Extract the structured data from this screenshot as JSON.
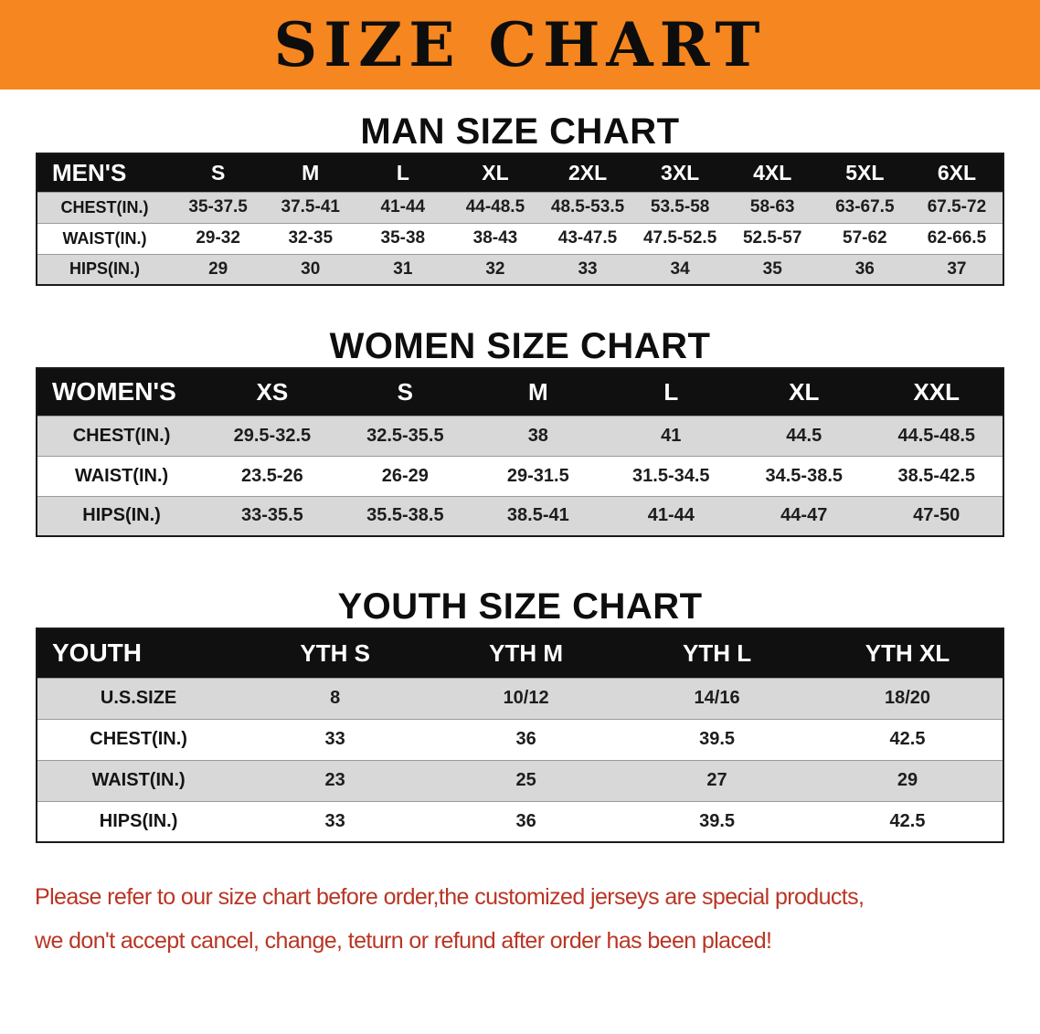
{
  "banner": {
    "title": "SIZE CHART",
    "bg_color": "#f6861f",
    "text_color": "#0d0d0d"
  },
  "men": {
    "heading": "MAN SIZE CHART",
    "table": {
      "header": [
        "MEN'S",
        "S",
        "M",
        "L",
        "XL",
        "2XL",
        "3XL",
        "4XL",
        "5XL",
        "6XL"
      ],
      "rows": [
        [
          "CHEST(IN.)",
          "35-37.5",
          "37.5-41",
          "41-44",
          "44-48.5",
          "48.5-53.5",
          "53.5-58",
          "58-63",
          "63-67.5",
          "67.5-72"
        ],
        [
          "WAIST(IN.)",
          "29-32",
          "32-35",
          "35-38",
          "38-43",
          "43-47.5",
          "47.5-52.5",
          "52.5-57",
          "57-62",
          "62-66.5"
        ],
        [
          "HIPS(IN.)",
          "29",
          "30",
          "31",
          "32",
          "33",
          "34",
          "35",
          "36",
          "37"
        ]
      ]
    }
  },
  "women": {
    "heading": "WOMEN SIZE CHART",
    "table": {
      "header": [
        "WOMEN'S",
        "XS",
        "S",
        "M",
        "L",
        "XL",
        "XXL"
      ],
      "rows": [
        [
          "CHEST(IN.)",
          "29.5-32.5",
          "32.5-35.5",
          "38",
          "41",
          "44.5",
          "44.5-48.5"
        ],
        [
          "WAIST(IN.)",
          "23.5-26",
          "26-29",
          "29-31.5",
          "31.5-34.5",
          "34.5-38.5",
          "38.5-42.5"
        ],
        [
          "HIPS(IN.)",
          "33-35.5",
          "35.5-38.5",
          "38.5-41",
          "41-44",
          "44-47",
          "47-50"
        ]
      ]
    }
  },
  "youth": {
    "heading": "YOUTH SIZE CHART",
    "table": {
      "header": [
        "YOUTH",
        "YTH S",
        "YTH M",
        "YTH L",
        "YTH XL"
      ],
      "rows": [
        [
          "U.S.SIZE",
          "8",
          "10/12",
          "14/16",
          "18/20"
        ],
        [
          "CHEST(IN.)",
          "33",
          "36",
          "39.5",
          "42.5"
        ],
        [
          "WAIST(IN.)",
          "23",
          "25",
          "27",
          "29"
        ],
        [
          "HIPS(IN.)",
          "33",
          "36",
          "39.5",
          "42.5"
        ]
      ]
    }
  },
  "footer": {
    "line1": "Please refer to our size chart before order,the customized jerseys are special products,",
    "line2": "we don't accept cancel, change, teturn or refund after order has been placed!",
    "text_color": "#b93524"
  }
}
